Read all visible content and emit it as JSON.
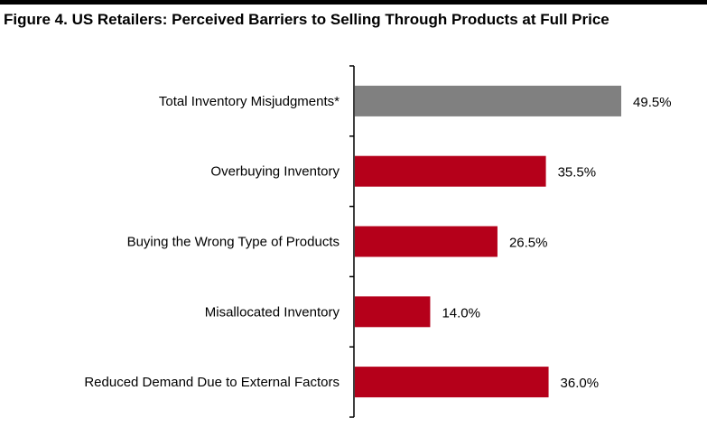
{
  "figure": {
    "title": "Figure 4. US Retailers: Perceived Barriers to Selling Through Products at Full Price"
  },
  "chart_data": {
    "type": "bar",
    "orientation": "horizontal",
    "title": "Figure 4. US Retailers: Perceived Barriers to Selling Through Products at Full Price",
    "categories": [
      "Total Inventory Misjudgments*",
      "Overbuying Inventory",
      "Buying the Wrong Type of Products",
      "Misallocated Inventory",
      "Reduced Demand Due to External Factors"
    ],
    "values": [
      49.5,
      35.5,
      26.5,
      14.0,
      36.0
    ],
    "data_labels": [
      "49.5%",
      "35.5%",
      "26.5%",
      "14.0%",
      "36.0%"
    ],
    "bar_colors": [
      "#808080",
      "#b5001a",
      "#b5001a",
      "#b5001a",
      "#b5001a"
    ],
    "unit": "%",
    "xlim": [
      0,
      50
    ],
    "grid": false,
    "legend": "none",
    "xlabel": "",
    "ylabel": ""
  }
}
